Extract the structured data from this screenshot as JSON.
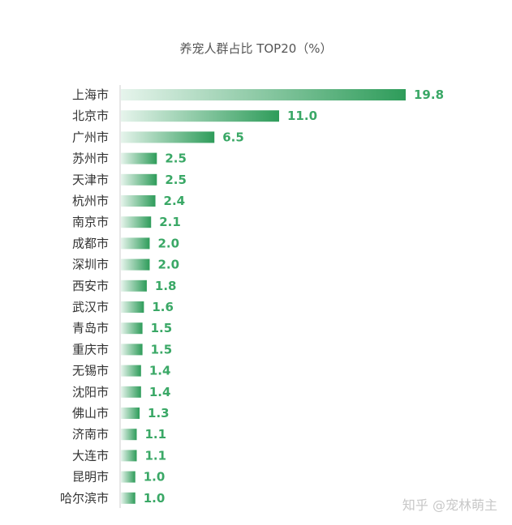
{
  "chart_data": {
    "type": "bar",
    "orientation": "horizontal",
    "title": "养宠人群占比 TOP20（%）",
    "categories": [
      "上海市",
      "北京市",
      "广州市",
      "苏州市",
      "天津市",
      "杭州市",
      "南京市",
      "成都市",
      "深圳市",
      "西安市",
      "武汉市",
      "青岛市",
      "重庆市",
      "无锡市",
      "沈阳市",
      "佛山市",
      "济南市",
      "大连市",
      "昆明市",
      "哈尔滨市"
    ],
    "values": [
      19.8,
      11.0,
      6.5,
      2.5,
      2.5,
      2.4,
      2.1,
      2.0,
      2.0,
      1.8,
      1.6,
      1.5,
      1.5,
      1.4,
      1.4,
      1.3,
      1.1,
      1.1,
      1.0,
      1.0
    ],
    "value_labels": [
      "19.8",
      "11.0",
      "6.5",
      "2.5",
      "2.5",
      "2.4",
      "2.1",
      "2.0",
      "2.0",
      "1.8",
      "1.6",
      "1.5",
      "1.5",
      "1.4",
      "1.4",
      "1.3",
      "1.1",
      "1.1",
      "1.0",
      "1.0"
    ],
    "xlim": [
      0,
      20
    ],
    "grid": false,
    "bar_color_start": "#e6f4ec",
    "bar_color_end": "#2e9c5a",
    "value_label_color": "#3aa866"
  },
  "watermark": "知乎 @宠林萌主"
}
